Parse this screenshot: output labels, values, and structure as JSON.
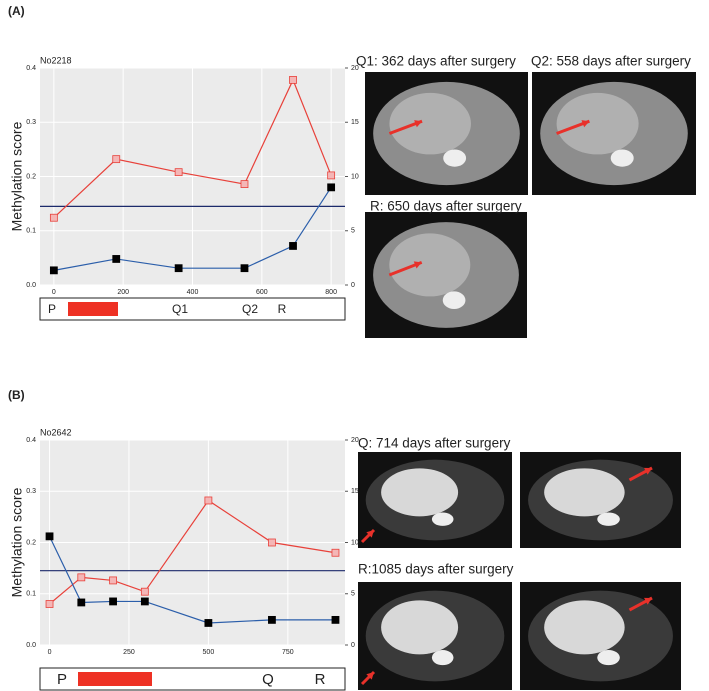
{
  "chart_data": [
    {
      "type": "line",
      "panel_label": "(A)",
      "title": "No2218",
      "y_label": "Methylation score",
      "x": [
        0,
        180,
        360,
        550,
        690,
        800
      ],
      "xlim": [
        -40,
        840
      ],
      "xticks": [
        0,
        200,
        400,
        600,
        800
      ],
      "ylim": [
        0,
        0.4
      ],
      "yticks": [
        {
          "value": 0,
          "label": "0.0"
        },
        0.1,
        0.2,
        0.3,
        0.4
      ],
      "y2lim": [
        0,
        20
      ],
      "y2ticks": [
        0,
        5,
        10,
        15,
        20
      ],
      "threshold": 0.145,
      "grid": true,
      "series": [
        {
          "color": "#e8413a",
          "marker_color": "#f4b6b6",
          "axis": "y2",
          "values": [
            6.2,
            11.6,
            10.4,
            9.3,
            18.9,
            10.1
          ]
        },
        {
          "color": "#2b5eaa",
          "marker_color": "#000000",
          "values": [
            0.027,
            0.048,
            0.031,
            0.031,
            0.072,
            0.18
          ]
        }
      ],
      "timeline_labels": [
        "P",
        "Q1",
        "Q2",
        "R"
      ],
      "image_captions": [
        "Q1: 362 days after surgery",
        "Q2: 558 days after surgery",
        "R: 650 days after surgery"
      ]
    },
    {
      "type": "line",
      "panel_label": "(B)",
      "title": "No2642",
      "y_label": "Methylation score",
      "x": [
        0,
        100,
        200,
        300,
        500,
        700,
        900
      ],
      "xlim": [
        -30,
        930
      ],
      "xticks": [
        0,
        250,
        500,
        750
      ],
      "ylim": [
        0,
        0.4
      ],
      "yticks": [
        {
          "value": 0,
          "label": "0.0"
        },
        0.1,
        0.2,
        0.3,
        0.4
      ],
      "y2lim": [
        0,
        20
      ],
      "y2ticks": [
        0,
        5,
        10,
        15,
        20
      ],
      "threshold": 0.145,
      "grid": true,
      "series": [
        {
          "color": "#e8413a",
          "marker_color": "#f4b6b6",
          "axis": "y2",
          "values": [
            4,
            6.6,
            6.3,
            5.2,
            14.1,
            10,
            9
          ]
        },
        {
          "color": "#2b5eaa",
          "marker_color": "#000000",
          "values": [
            0.212,
            0.083,
            0.085,
            0.085,
            0.043,
            0.049,
            0.049
          ]
        }
      ],
      "timeline_labels": [
        "P",
        "Q",
        "R"
      ],
      "image_captions": [
        "Q: 714 days after surgery",
        "R:1085 days after surgery"
      ]
    }
  ]
}
